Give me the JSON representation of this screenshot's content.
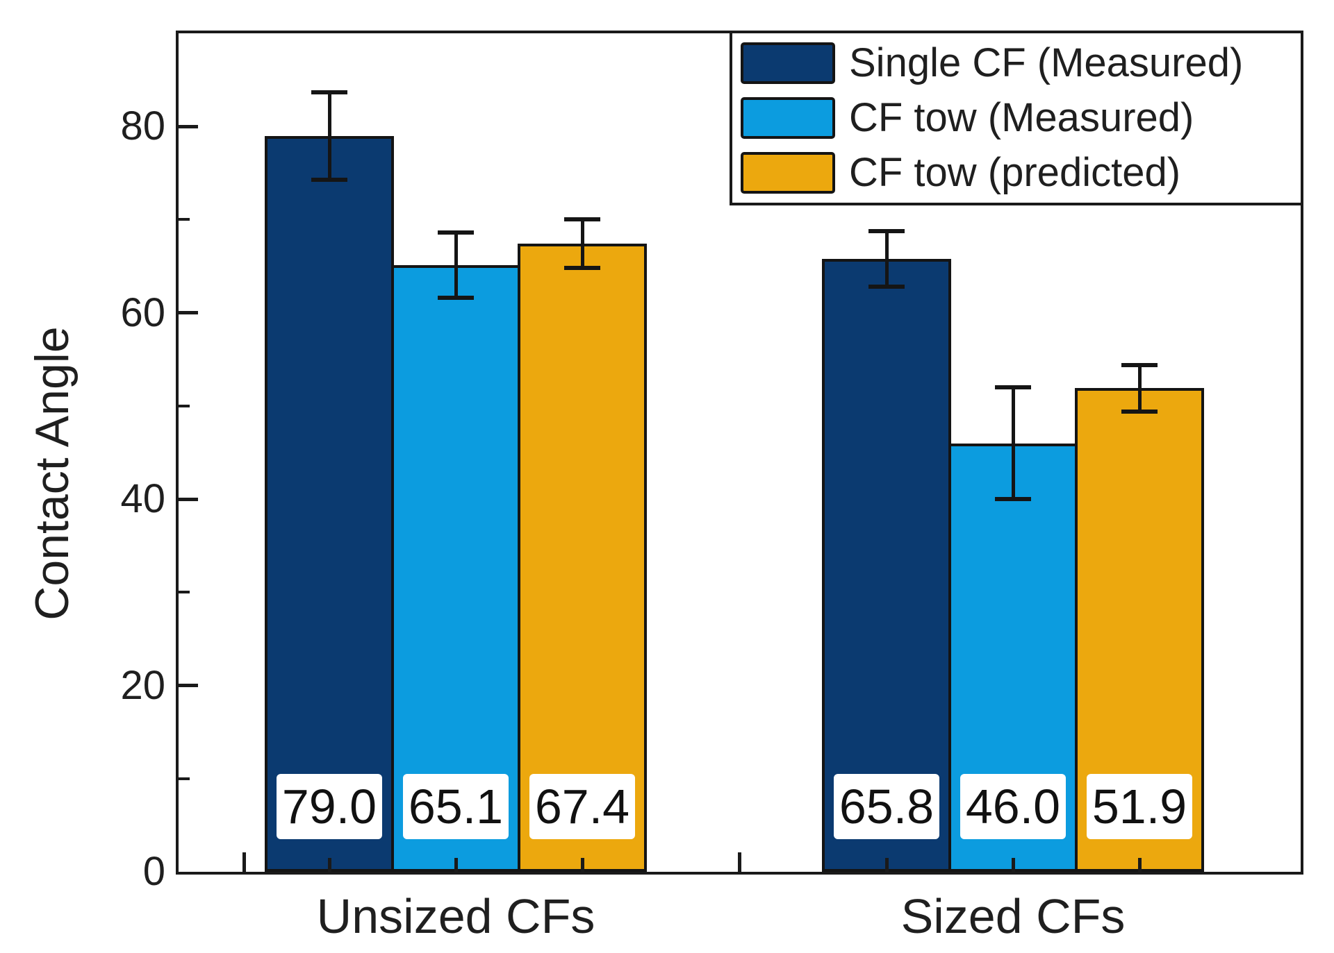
{
  "figure": {
    "background": "#ffffff",
    "text_color": "#1f1f1f",
    "frame_color": "#1a1a1a"
  },
  "chart_data": {
    "type": "bar",
    "title": "",
    "xlabel": "",
    "ylabel": "Contact Angle",
    "ylim": [
      0,
      90
    ],
    "yticks_major": [
      0,
      20,
      40,
      60,
      80
    ],
    "yticks_minor": [
      10,
      30,
      50,
      70
    ],
    "grid": false,
    "error_bars": true,
    "categories": [
      "Unsized CFs",
      "Sized CFs"
    ],
    "series": [
      {
        "name": "Single CF (Measured)",
        "color": "#0b3a70",
        "values": [
          79.0,
          65.8
        ],
        "errors": [
          4.7,
          3.0
        ],
        "value_labels": [
          "79.0",
          "65.8"
        ]
      },
      {
        "name": "CF tow (Measured)",
        "color": "#0c9cdf",
        "values": [
          65.1,
          46.0
        ],
        "errors": [
          3.5,
          6.0
        ],
        "value_labels": [
          "65.1",
          "46.0"
        ]
      },
      {
        "name": "CF tow (predicted)",
        "color": "#eca80e",
        "values": [
          67.4,
          51.9
        ],
        "errors": [
          2.6,
          2.5
        ],
        "value_labels": [
          "67.4",
          "51.9"
        ]
      }
    ],
    "legend": {
      "position": "top-right",
      "entries": [
        "Single CF (Measured)",
        "CF tow (Measured)",
        "CF tow (predicted)"
      ]
    }
  }
}
